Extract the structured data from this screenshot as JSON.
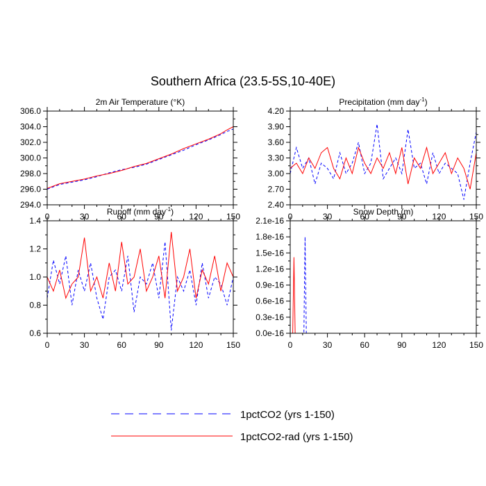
{
  "figure": {
    "title": "Southern Africa (23.5-5S,10-40E)"
  },
  "legend": {
    "placement": "bottom-center",
    "entries": [
      {
        "label": "1pctCO2 (yrs 1-150)",
        "color": "#0000ff",
        "style": "dashed"
      },
      {
        "label": "1pctCO2-rad (yrs 1-150)",
        "color": "#ff0000",
        "style": "solid"
      }
    ]
  },
  "chart_data": [
    {
      "id": "p1",
      "type": "line",
      "title": "2m Air Temperature (°K)",
      "xlabel": "",
      "ylabel": "",
      "xlim": [
        0,
        150
      ],
      "ylim": [
        294.0,
        306.0
      ],
      "xticks": [
        0,
        30,
        60,
        90,
        120,
        150
      ],
      "yticks": [
        "294.0",
        "296.0",
        "298.0",
        "300.0",
        "302.0",
        "304.0",
        "306.0"
      ],
      "ytick_values": [
        294,
        296,
        298,
        300,
        302,
        304,
        306
      ],
      "grid": false,
      "x": [
        0,
        10,
        20,
        30,
        40,
        50,
        60,
        70,
        80,
        90,
        100,
        110,
        120,
        130,
        140,
        145,
        150
      ],
      "series": [
        {
          "name": "1pctCO2 (yrs 1-150)",
          "color": "#0000ff",
          "dash": "4,3",
          "values": [
            296.0,
            296.6,
            296.9,
            297.2,
            297.6,
            298.1,
            298.5,
            298.8,
            299.2,
            299.8,
            300.4,
            301.0,
            301.7,
            302.3,
            303.0,
            303.4,
            303.7
          ]
        },
        {
          "name": "1pctCO2-rad (yrs 1-150)",
          "color": "#ff0000",
          "dash": "",
          "values": [
            296.1,
            296.7,
            297.0,
            297.3,
            297.7,
            298.0,
            298.4,
            298.9,
            299.3,
            299.9,
            300.5,
            301.2,
            301.8,
            302.4,
            303.1,
            303.6,
            304.0
          ]
        }
      ]
    },
    {
      "id": "p2",
      "type": "line",
      "title": "Precipitation (mm day",
      "title_sup": "-1",
      "title_end": ")",
      "xlabel": "",
      "ylabel": "",
      "xlim": [
        0,
        150
      ],
      "ylim": [
        2.4,
        4.2
      ],
      "xticks": [
        0,
        30,
        60,
        90,
        120,
        150
      ],
      "yticks": [
        "2.40",
        "2.70",
        "3.00",
        "3.30",
        "3.60",
        "3.90",
        "4.20"
      ],
      "ytick_values": [
        2.4,
        2.7,
        3.0,
        3.3,
        3.6,
        3.9,
        4.2
      ],
      "grid": false,
      "x": [
        0,
        5,
        10,
        15,
        20,
        25,
        30,
        35,
        40,
        45,
        50,
        55,
        60,
        65,
        70,
        75,
        80,
        85,
        90,
        95,
        100,
        105,
        110,
        115,
        120,
        125,
        130,
        135,
        140,
        145,
        150
      ],
      "series": [
        {
          "name": "1pctCO2 (yrs 1-150)",
          "color": "#0000ff",
          "dash": "4,3",
          "values": [
            3.0,
            3.5,
            3.1,
            3.3,
            2.8,
            3.2,
            3.1,
            2.9,
            3.4,
            3.0,
            3.2,
            3.6,
            3.0,
            3.2,
            3.95,
            2.9,
            3.1,
            3.3,
            3.0,
            3.85,
            3.1,
            3.2,
            2.8,
            3.4,
            3.0,
            3.2,
            3.1,
            3.0,
            2.5,
            3.2,
            3.8
          ]
        },
        {
          "name": "1pctCO2-rad (yrs 1-150)",
          "color": "#ff0000",
          "dash": "",
          "values": [
            3.1,
            3.2,
            3.0,
            3.3,
            3.1,
            3.4,
            3.5,
            3.1,
            2.9,
            3.3,
            3.0,
            3.5,
            3.2,
            3.0,
            3.3,
            3.1,
            3.4,
            3.0,
            3.5,
            2.8,
            3.3,
            3.1,
            3.5,
            3.0,
            3.2,
            3.4,
            3.0,
            3.3,
            3.1,
            2.7,
            3.4
          ]
        }
      ]
    },
    {
      "id": "p3",
      "type": "line",
      "title": "Runoff (mm day",
      "title_sup": "-1",
      "title_end": ")",
      "xlabel": "",
      "ylabel": "",
      "xlim": [
        0,
        150
      ],
      "ylim": [
        0.6,
        1.4
      ],
      "xticks": [
        0,
        30,
        60,
        90,
        120,
        150
      ],
      "yticks": [
        "0.6",
        "0.8",
        "1.0",
        "1.2",
        "1.4"
      ],
      "ytick_values": [
        0.6,
        0.8,
        1.0,
        1.2,
        1.4
      ],
      "grid": false,
      "x": [
        0,
        5,
        10,
        15,
        20,
        25,
        30,
        35,
        40,
        45,
        50,
        55,
        60,
        65,
        70,
        75,
        80,
        85,
        90,
        95,
        100,
        105,
        110,
        115,
        120,
        125,
        130,
        135,
        140,
        145,
        150
      ],
      "series": [
        {
          "name": "1pctCO2 (yrs 1-150)",
          "color": "#0000ff",
          "dash": "4,3",
          "values": [
            0.85,
            1.12,
            0.95,
            1.15,
            0.8,
            1.05,
            0.9,
            1.1,
            0.85,
            0.7,
            1.0,
            1.05,
            0.9,
            1.15,
            0.75,
            1.0,
            0.95,
            1.1,
            0.85,
            1.25,
            0.62,
            1.0,
            0.9,
            1.05,
            0.8,
            1.1,
            0.85,
            1.0,
            0.95,
            0.8,
            1.0
          ]
        },
        {
          "name": "1pctCO2-rad (yrs 1-150)",
          "color": "#ff0000",
          "dash": "",
          "values": [
            1.0,
            0.9,
            1.05,
            0.85,
            0.95,
            1.0,
            1.28,
            0.9,
            1.0,
            0.85,
            1.1,
            0.9,
            1.25,
            0.95,
            1.0,
            1.2,
            0.9,
            1.0,
            1.15,
            0.85,
            1.32,
            0.9,
            1.0,
            1.2,
            0.85,
            1.05,
            0.95,
            1.15,
            0.9,
            1.1,
            1.0
          ]
        }
      ]
    },
    {
      "id": "p4",
      "type": "line",
      "title": "Snow Depth (m)",
      "xlabel": "",
      "ylabel": "",
      "xlim": [
        0,
        150
      ],
      "ylim": [
        0,
        2.1e-16
      ],
      "xticks": [
        0,
        30,
        60,
        90,
        120,
        150
      ],
      "yticks": [
        "0.0e-16",
        "0.3e-16",
        "0.6e-16",
        "0.9e-16",
        "1.2e-16",
        "1.5e-16",
        "1.8e-16",
        "2.1e-16"
      ],
      "ytick_values": [
        0,
        3e-17,
        6e-17,
        9e-17,
        1.2e-16,
        1.5e-16,
        1.8e-16,
        2.1e-16
      ],
      "grid": false,
      "x": [
        0,
        1,
        2,
        3,
        4,
        5,
        10,
        11,
        12,
        13,
        14,
        20,
        150
      ],
      "series": [
        {
          "name": "1pctCO2 (yrs 1-150)",
          "color": "#0000ff",
          "dash": "4,3",
          "values": [
            0,
            0,
            0,
            0,
            0,
            0,
            0,
            0,
            1.8e-16,
            0,
            0,
            0,
            0
          ]
        },
        {
          "name": "1pctCO2-rad (yrs 1-150)",
          "color": "#ff0000",
          "dash": "",
          "values": [
            0,
            0,
            0,
            1.42e-16,
            0,
            0,
            0,
            0,
            0,
            0,
            0,
            0,
            0
          ]
        }
      ]
    }
  ]
}
